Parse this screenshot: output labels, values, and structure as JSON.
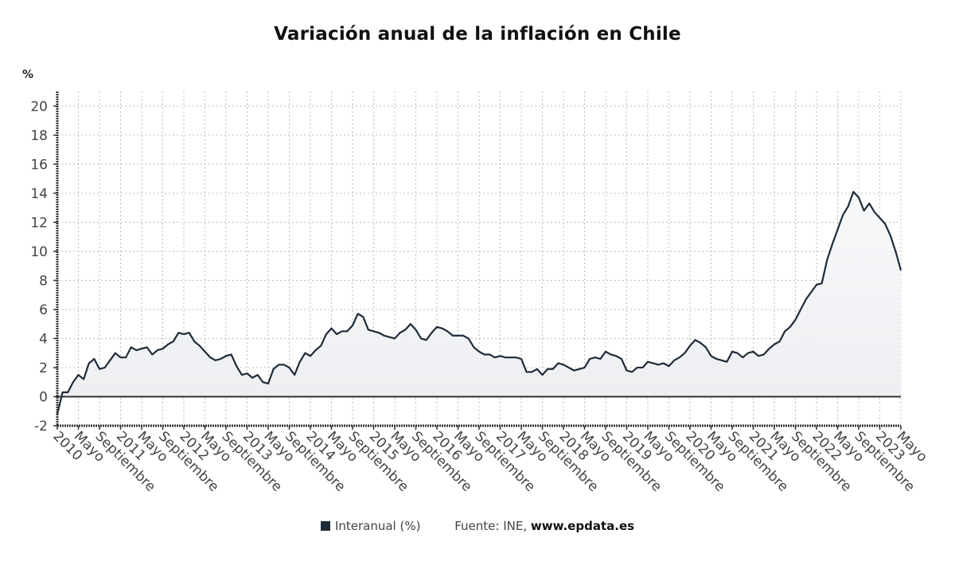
{
  "chart_data": {
    "type": "area",
    "title": "Variación anual de la inflación en Chile",
    "ylabel": "%",
    "xlabel": "",
    "ylim": [
      -2,
      21
    ],
    "yticks": [
      -2,
      0,
      2,
      4,
      6,
      8,
      10,
      12,
      14,
      16,
      18,
      20
    ],
    "grid": true,
    "x_start": "2010-01",
    "x_end": "2023-05",
    "x_frequency": "monthly",
    "xtick_labels": [
      "2010",
      "Mayo",
      "Septiembre",
      "2011",
      "Mayo",
      "Septiembre",
      "2012",
      "Mayo",
      "Septiembre",
      "2013",
      "Mayo",
      "Septiembre",
      "2014",
      "Mayo",
      "Septiembre",
      "2015",
      "Mayo",
      "Septiembre",
      "2016",
      "Mayo",
      "Septiembre",
      "2017",
      "Mayo",
      "Septiembre",
      "2018",
      "Mayo",
      "Septiembre",
      "2019",
      "Mayo",
      "Septiembre",
      "2020",
      "Mayo",
      "Septiembre",
      "2021",
      "Mayo",
      "Septiembre",
      "2022",
      "Mayo",
      "Septiembre",
      "2023",
      "Mayo"
    ],
    "series": [
      {
        "name": "Interanual (%)",
        "color": "#1e2b3a",
        "fill": "#eceef1",
        "values": [
          -1.2,
          0.3,
          0.3,
          1.0,
          1.5,
          1.2,
          2.3,
          2.6,
          1.9,
          2.0,
          2.5,
          3.0,
          2.7,
          2.7,
          3.4,
          3.2,
          3.3,
          3.4,
          2.9,
          3.2,
          3.3,
          3.6,
          3.8,
          4.4,
          4.3,
          4.4,
          3.8,
          3.5,
          3.1,
          2.7,
          2.5,
          2.6,
          2.8,
          2.9,
          2.1,
          1.5,
          1.6,
          1.3,
          1.5,
          1.0,
          0.9,
          1.9,
          2.2,
          2.2,
          2.0,
          1.5,
          2.4,
          3.0,
          2.8,
          3.2,
          3.5,
          4.3,
          4.7,
          4.3,
          4.5,
          4.5,
          4.9,
          5.7,
          5.5,
          4.6,
          4.5,
          4.4,
          4.2,
          4.1,
          4.0,
          4.4,
          4.6,
          5.0,
          4.6,
          4.0,
          3.9,
          4.4,
          4.8,
          4.7,
          4.5,
          4.2,
          4.2,
          4.2,
          4.0,
          3.4,
          3.1,
          2.9,
          2.9,
          2.7,
          2.8,
          2.7,
          2.7,
          2.7,
          2.6,
          1.7,
          1.7,
          1.9,
          1.5,
          1.9,
          1.9,
          2.3,
          2.2,
          2.0,
          1.8,
          1.9,
          2.0,
          2.6,
          2.7,
          2.6,
          3.1,
          2.9,
          2.8,
          2.6,
          1.8,
          1.7,
          2.0,
          2.0,
          2.4,
          2.3,
          2.2,
          2.3,
          2.1,
          2.5,
          2.7,
          3.0,
          3.5,
          3.9,
          3.7,
          3.4,
          2.8,
          2.6,
          2.5,
          2.4,
          3.1,
          3.0,
          2.7,
          3.0,
          3.1,
          2.8,
          2.9,
          3.3,
          3.6,
          3.8,
          4.5,
          4.8,
          5.3,
          6.0,
          6.7,
          7.2,
          7.7,
          7.8,
          9.4,
          10.5,
          11.5,
          12.5,
          13.1,
          14.1,
          13.7,
          12.8,
          13.3,
          12.7,
          12.3,
          11.9,
          11.1,
          10.0,
          8.7
        ]
      }
    ],
    "legend": {
      "position": "bottom-center",
      "entries": [
        "Interanual (%)"
      ]
    },
    "source_label": "Fuente: INE,",
    "source_site": "www.epdata.es"
  }
}
